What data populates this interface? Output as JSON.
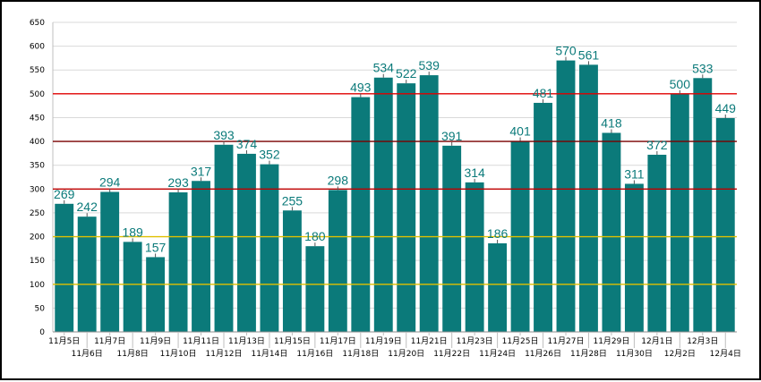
{
  "chart_data": {
    "type": "bar",
    "title": "",
    "xlabel": "",
    "ylabel": "",
    "ylim": [
      0,
      650
    ],
    "y_ticks": [
      0,
      50,
      100,
      150,
      200,
      250,
      300,
      350,
      400,
      450,
      500,
      550,
      600,
      650
    ],
    "categories": [
      "11月5日",
      "11月6日",
      "11月7日",
      "11月8日",
      "11月9日",
      "11月10日",
      "11月11日",
      "11月12日",
      "11月13日",
      "11月14日",
      "11月15日",
      "11月16日",
      "11月17日",
      "11月18日",
      "11月19日",
      "11月20日",
      "11月21日",
      "11月22日",
      "11月23日",
      "11月24日",
      "11月25日",
      "11月26日",
      "11月27日",
      "11月28日",
      "11月29日",
      "11月30日",
      "12月1日",
      "12月2日",
      "12月3日",
      "12月4日"
    ],
    "values": [
      269,
      242,
      294,
      189,
      157,
      293,
      317,
      393,
      374,
      352,
      255,
      180,
      298,
      493,
      534,
      522,
      539,
      391,
      314,
      186,
      401,
      481,
      570,
      561,
      418,
      311,
      372,
      500,
      533,
      449
    ],
    "bar_color": "#0b7a7a",
    "label_color": "#0b7a7a",
    "grid": true,
    "reference_lines": [
      {
        "value": 100,
        "color": "#e0c000"
      },
      {
        "value": 200,
        "color": "#e0c000"
      },
      {
        "value": 300,
        "color": "#c00000"
      },
      {
        "value": 400,
        "color": "#7a0000"
      },
      {
        "value": 500,
        "color": "#e00000"
      }
    ]
  }
}
